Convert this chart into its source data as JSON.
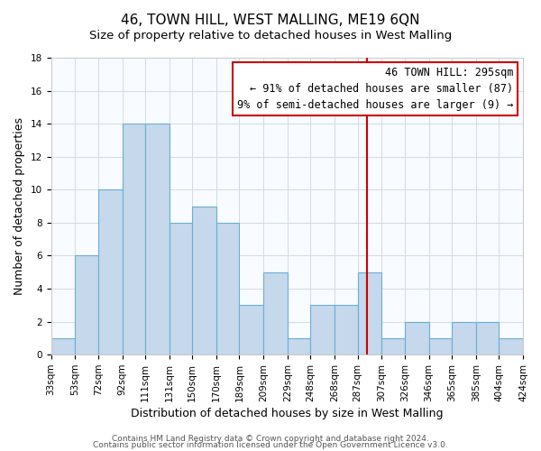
{
  "title": "46, TOWN HILL, WEST MALLING, ME19 6QN",
  "subtitle": "Size of property relative to detached houses in West Malling",
  "xlabel": "Distribution of detached houses by size in West Malling",
  "ylabel": "Number of detached properties",
  "bin_labels": [
    "33sqm",
    "53sqm",
    "72sqm",
    "92sqm",
    "111sqm",
    "131sqm",
    "150sqm",
    "170sqm",
    "189sqm",
    "209sqm",
    "229sqm",
    "248sqm",
    "268sqm",
    "287sqm",
    "307sqm",
    "326sqm",
    "346sqm",
    "365sqm",
    "385sqm",
    "404sqm",
    "424sqm"
  ],
  "bin_edges": [
    33,
    53,
    72,
    92,
    111,
    131,
    150,
    170,
    189,
    209,
    229,
    248,
    268,
    287,
    307,
    326,
    346,
    365,
    385,
    404,
    424
  ],
  "counts": [
    1,
    6,
    10,
    14,
    14,
    8,
    9,
    8,
    3,
    5,
    1,
    3,
    3,
    5,
    1,
    2,
    1,
    2,
    2,
    1
  ],
  "bar_color": "#c5d8ec",
  "bar_edge_color": "#6aaed6",
  "vline_x": 295,
  "vline_color": "#cc0000",
  "annotation_line1": "46 TOWN HILL: 295sqm",
  "annotation_line2": "← 91% of detached houses are smaller (87)",
  "annotation_line3": "9% of semi-detached houses are larger (9) →",
  "box_facecolor": "#ffffff",
  "box_edge_color": "#cc0000",
  "ylim": [
    0,
    18
  ],
  "yticks": [
    0,
    2,
    4,
    6,
    8,
    10,
    12,
    14,
    16,
    18
  ],
  "grid_color": "#d0dce8",
  "footer1": "Contains HM Land Registry data © Crown copyright and database right 2024.",
  "footer2": "Contains public sector information licensed under the Open Government Licence v3.0.",
  "title_fontsize": 11,
  "subtitle_fontsize": 9.5,
  "xlabel_fontsize": 9,
  "ylabel_fontsize": 9,
  "tick_fontsize": 7.5,
  "footer_fontsize": 6.5,
  "annotation_fontsize": 8.5
}
